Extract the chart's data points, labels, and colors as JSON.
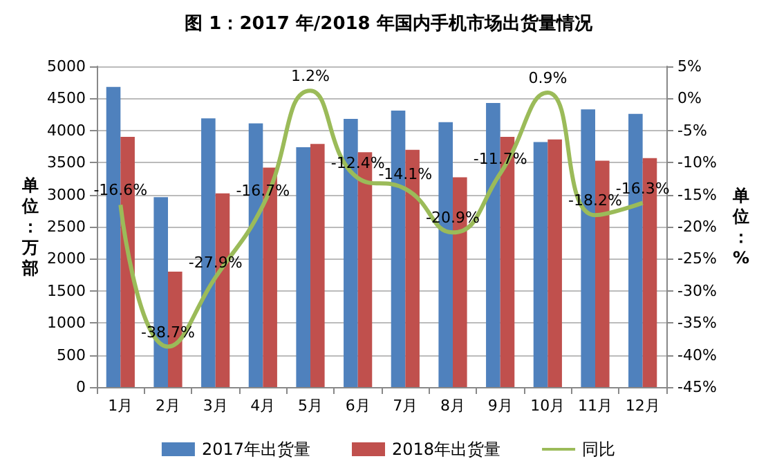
{
  "chart_data": {
    "type": "bar",
    "title": "图 1：2017 年/2018 年国内手机市场出货量情况",
    "ylabel": "单位：万部",
    "y2label": "单位：%",
    "categories": [
      "1月",
      "2月",
      "3月",
      "4月",
      "5月",
      "6月",
      "7月",
      "8月",
      "9月",
      "10月",
      "11月",
      "12月"
    ],
    "series": [
      {
        "name": "2017年出货量",
        "color": "#4f81bd",
        "values": [
          4680,
          2960,
          4190,
          4110,
          3740,
          4180,
          4310,
          4130,
          4430,
          3820,
          4330,
          4260
        ]
      },
      {
        "name": "2018年出货量",
        "color": "#c0504d",
        "values": [
          3900,
          1800,
          3020,
          3420,
          3790,
          3660,
          3700,
          3270,
          3900,
          3860,
          3530,
          3570
        ]
      },
      {
        "name": "同比",
        "type": "line",
        "axis": "y2",
        "color": "#9bbb59",
        "marker": "none",
        "values": [
          -16.6,
          -38.7,
          -27.9,
          -16.7,
          1.2,
          -12.4,
          -14.1,
          -20.9,
          -11.7,
          0.9,
          -18.2,
          -16.3
        ],
        "value_labels": [
          "-16.6%",
          "-38.7%",
          "-27.9%",
          "-16.7%",
          "1.2%",
          "-12.4%",
          "-14.1%",
          "-20.9%",
          "-11.7%",
          "0.9%",
          "-18.2%",
          "-16.3%"
        ]
      }
    ],
    "ylim": [
      0,
      5000
    ],
    "yticks": [
      0,
      500,
      1000,
      1500,
      2000,
      2500,
      3000,
      3500,
      4000,
      4500,
      5000
    ],
    "y2lim": [
      -45,
      5
    ],
    "y2ticks": [
      {
        "value": -45,
        "label": "-45%"
      },
      {
        "value": -40,
        "label": "-40%"
      },
      {
        "value": -35,
        "label": "-35%"
      },
      {
        "value": -30,
        "label": "-30%"
      },
      {
        "value": -25,
        "label": "-25%"
      },
      {
        "value": -20,
        "label": "-20%"
      },
      {
        "value": -15,
        "label": "-15%"
      },
      {
        "value": -10,
        "label": "-10%"
      },
      {
        "value": -5,
        "label": "-5%"
      },
      {
        "value": 0,
        "label": "0%"
      },
      {
        "value": 5,
        "label": "5%"
      }
    ],
    "grid": "y",
    "legend": "bottom"
  }
}
